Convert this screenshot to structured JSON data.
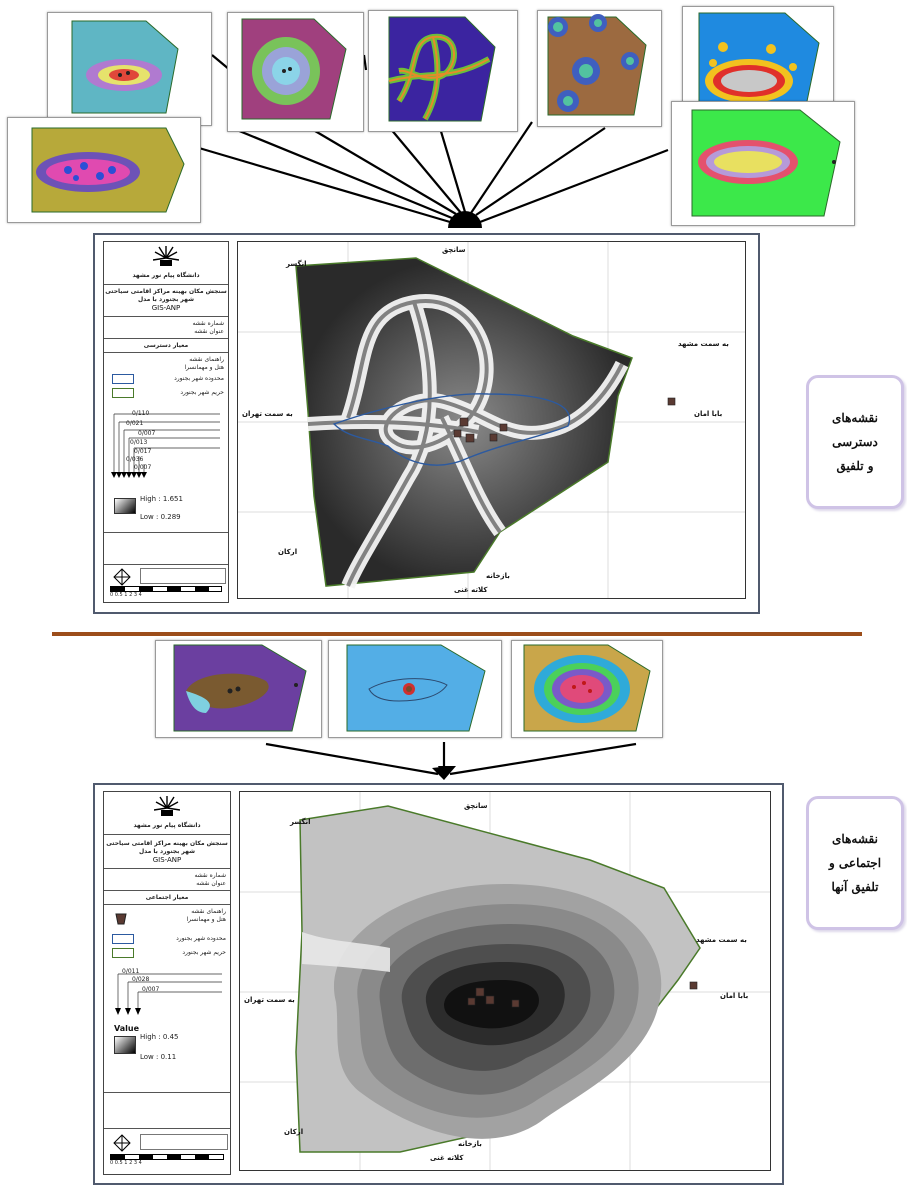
{
  "colors": {
    "divider": "#9c4d1a",
    "callout_border": "#cfc3e6",
    "frame_border": "#505a6e",
    "boundary_green": "#4a7a2a",
    "city_blue": "#2c5aa0"
  },
  "callouts": {
    "access": {
      "line1": "نقشه‌های",
      "line2": "دسترسی",
      "line3": "و تلفیق"
    },
    "social": {
      "line1": "نقشه‌های",
      "line2": "اجتماعی و",
      "line3": "تلفیق آنها"
    }
  },
  "map1": {
    "legend": {
      "university": "دانشگاه پیام نور مشهد",
      "title1": "سنجش مکان بهینه مراکز اقامتی سیاحتی",
      "title2": "شهر بجنورد با مدل",
      "model": "GIS-ANP",
      "map_number_label": "شماره نقشه",
      "map_title_label": "عنوان نقشه",
      "map_title": "معیار دسترسی",
      "legend_label": "راهنمای نقشه",
      "hotel": "هتل و مهمانسرا",
      "city_extent": "محدوده شهر بجنورد",
      "city_buffer": "حریم شهر بجنورد",
      "weights": [
        "0/110",
        "0/021",
        "0/007",
        "0/013",
        "0/017",
        "0/036",
        "0/007"
      ],
      "high": "High : 1.651",
      "low": "Low : 0.289",
      "scale_label": "0  0.5  1      2      3      4"
    },
    "labels": {
      "north": "سانچق",
      "northwest": "انگسر",
      "to_mashhad": "به سمت مشهد",
      "to_tehran": "به سمت تهران",
      "baba_aman": "بابا امان",
      "arkan": "ارکان",
      "bazkhaneh": "بازخانه",
      "south": "کلاته غنی"
    }
  },
  "map2": {
    "legend": {
      "university": "دانشگاه پیام نور مشهد",
      "title1": "سنجش مکان بهینه مراکز اقامتی سیاحتی",
      "title2": "شهر بجنورد با مدل",
      "model": "GIS-ANP",
      "map_number_label": "شماره نقشه",
      "map_title_label": "عنوان نقشه",
      "map_title": "معیار اجتماعی",
      "legend_label": "راهنمای نقشه",
      "hotel": "هتل و مهمانسرا",
      "city_extent": "محدوده شهر بجنورد",
      "city_buffer": "حریم شهر بجنورد",
      "weights": [
        "0/011",
        "0/028",
        "0/007"
      ],
      "value_label": "Value",
      "high": "High : 0.45",
      "low": "Low : 0.11",
      "scale_label": "0  0.5  1      2      3      4"
    },
    "labels": {
      "north": "سانچق",
      "northwest": "انگسر",
      "to_mashhad": "به سمت مشهد",
      "to_tehran": "به سمت تهران",
      "baba_aman": "بابا امان",
      "arkan": "ارکان",
      "bazkhaneh": "بازخانه",
      "south": "کلاته غنی"
    }
  }
}
